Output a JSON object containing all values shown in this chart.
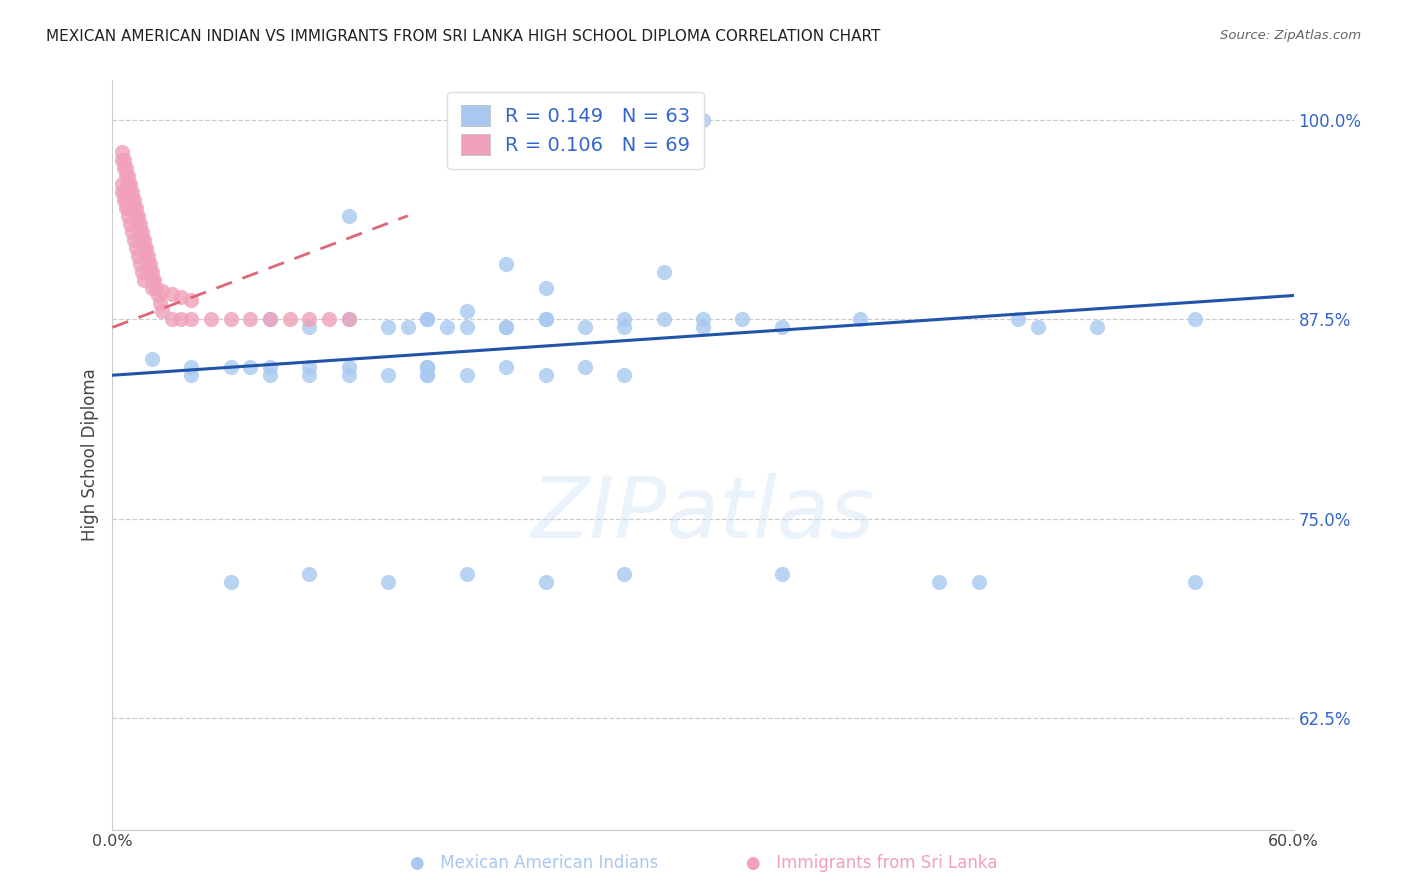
{
  "title": "MEXICAN AMERICAN INDIAN VS IMMIGRANTS FROM SRI LANKA HIGH SCHOOL DIPLOMA CORRELATION CHART",
  "source": "Source: ZipAtlas.com",
  "ylabel": "High School Diploma",
  "ytick_values": [
    1.0,
    0.875,
    0.75,
    0.625
  ],
  "ytick_labels": [
    "100.0%",
    "87.5%",
    "75.0%",
    "62.5%"
  ],
  "xlim": [
    0.0,
    0.6
  ],
  "ylim": [
    0.555,
    1.025
  ],
  "blue_R": 0.149,
  "blue_N": 63,
  "pink_R": 0.106,
  "pink_N": 69,
  "blue_color": "#a8c8f0",
  "pink_color": "#f0a0b8",
  "blue_line_color": "#2255aa",
  "pink_line_color": "#dd6677",
  "legend_text_color": "#3366cc",
  "watermark": "ZIPatlas",
  "blue_x": [
    0.3,
    0.12,
    0.2,
    0.28,
    0.22,
    0.18,
    0.26,
    0.3,
    0.32,
    0.34,
    0.38,
    0.55,
    0.5,
    0.46,
    0.47,
    0.12,
    0.1,
    0.08,
    0.14,
    0.15,
    0.16,
    0.16,
    0.17,
    0.18,
    0.2,
    0.22,
    0.24,
    0.22,
    0.2,
    0.26,
    0.28,
    0.3,
    0.02,
    0.04,
    0.04,
    0.06,
    0.07,
    0.08,
    0.08,
    0.1,
    0.1,
    0.12,
    0.12,
    0.14,
    0.16,
    0.16,
    0.16,
    0.16,
    0.18,
    0.2,
    0.22,
    0.24,
    0.26,
    0.44,
    0.55,
    0.42,
    0.34,
    0.26,
    0.22,
    0.18,
    0.14,
    0.1,
    0.06
  ],
  "blue_y": [
    1.0,
    0.94,
    0.91,
    0.905,
    0.895,
    0.88,
    0.875,
    0.875,
    0.875,
    0.87,
    0.875,
    0.875,
    0.87,
    0.875,
    0.87,
    0.875,
    0.87,
    0.875,
    0.87,
    0.87,
    0.875,
    0.875,
    0.87,
    0.87,
    0.87,
    0.875,
    0.87,
    0.875,
    0.87,
    0.87,
    0.875,
    0.87,
    0.85,
    0.845,
    0.84,
    0.845,
    0.845,
    0.845,
    0.84,
    0.84,
    0.845,
    0.845,
    0.84,
    0.84,
    0.845,
    0.84,
    0.845,
    0.84,
    0.84,
    0.845,
    0.84,
    0.845,
    0.84,
    0.71,
    0.71,
    0.71,
    0.715,
    0.715,
    0.71,
    0.715,
    0.71,
    0.715,
    0.71
  ],
  "pink_x": [
    0.005,
    0.006,
    0.007,
    0.008,
    0.009,
    0.01,
    0.011,
    0.012,
    0.013,
    0.014,
    0.015,
    0.016,
    0.017,
    0.018,
    0.019,
    0.02,
    0.021,
    0.022,
    0.023,
    0.024,
    0.005,
    0.006,
    0.007,
    0.008,
    0.009,
    0.01,
    0.011,
    0.012,
    0.013,
    0.014,
    0.015,
    0.016,
    0.017,
    0.018,
    0.019,
    0.02,
    0.005,
    0.006,
    0.007,
    0.008,
    0.005,
    0.006,
    0.007,
    0.008,
    0.009,
    0.01,
    0.011,
    0.012,
    0.013,
    0.014,
    0.015,
    0.016,
    0.025,
    0.03,
    0.035,
    0.04,
    0.05,
    0.06,
    0.07,
    0.08,
    0.09,
    0.1,
    0.11,
    0.12,
    0.02,
    0.025,
    0.03,
    0.035,
    0.04
  ],
  "pink_y": [
    0.98,
    0.975,
    0.97,
    0.965,
    0.96,
    0.955,
    0.95,
    0.945,
    0.94,
    0.935,
    0.93,
    0.925,
    0.92,
    0.915,
    0.91,
    0.905,
    0.9,
    0.895,
    0.89,
    0.885,
    0.975,
    0.97,
    0.965,
    0.96,
    0.955,
    0.95,
    0.945,
    0.94,
    0.935,
    0.93,
    0.925,
    0.92,
    0.915,
    0.91,
    0.905,
    0.9,
    0.96,
    0.955,
    0.95,
    0.945,
    0.955,
    0.95,
    0.945,
    0.94,
    0.935,
    0.93,
    0.925,
    0.92,
    0.915,
    0.91,
    0.905,
    0.9,
    0.88,
    0.875,
    0.875,
    0.875,
    0.875,
    0.875,
    0.875,
    0.875,
    0.875,
    0.875,
    0.875,
    0.875,
    0.895,
    0.893,
    0.891,
    0.889,
    0.887
  ]
}
